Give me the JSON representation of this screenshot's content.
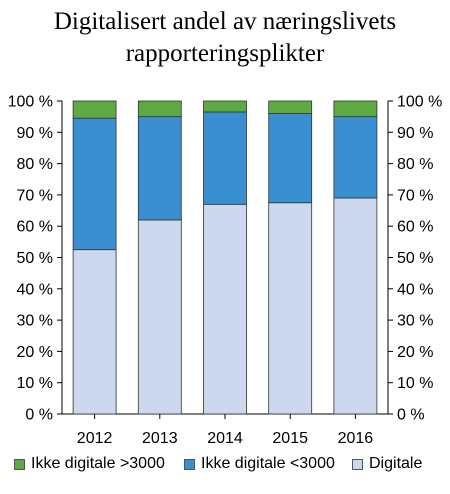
{
  "chart_data": {
    "type": "bar",
    "stacked": true,
    "title": [
      "Digitalisert andel av næringslivets",
      "rapporteringsplikter"
    ],
    "categories": [
      "2012",
      "2013",
      "2014",
      "2015",
      "2016"
    ],
    "ylim": [
      0,
      100
    ],
    "yticks": [
      "0 %",
      "10 %",
      "20 %",
      "30 %",
      "40 %",
      "50 %",
      "60 %",
      "70 %",
      "80 %",
      "90 %",
      "100 %"
    ],
    "grid": false,
    "legend_position": "bottom",
    "series": [
      {
        "name": "Digitale",
        "color": "#cdd8ee",
        "values": [
          52.5,
          62,
          67,
          67.5,
          69
        ]
      },
      {
        "name": "Ikke digitale <3000",
        "color": "#3a8fd1",
        "values": [
          42,
          33,
          29.5,
          28.5,
          26
        ]
      },
      {
        "name": "Ikke digitale >3000",
        "color": "#5daa45",
        "values": [
          5.5,
          5,
          3.5,
          4,
          5
        ]
      }
    ],
    "legend_order": [
      "Ikke digitale >3000",
      "Ikke digitale <3000",
      "Digitale"
    ]
  }
}
